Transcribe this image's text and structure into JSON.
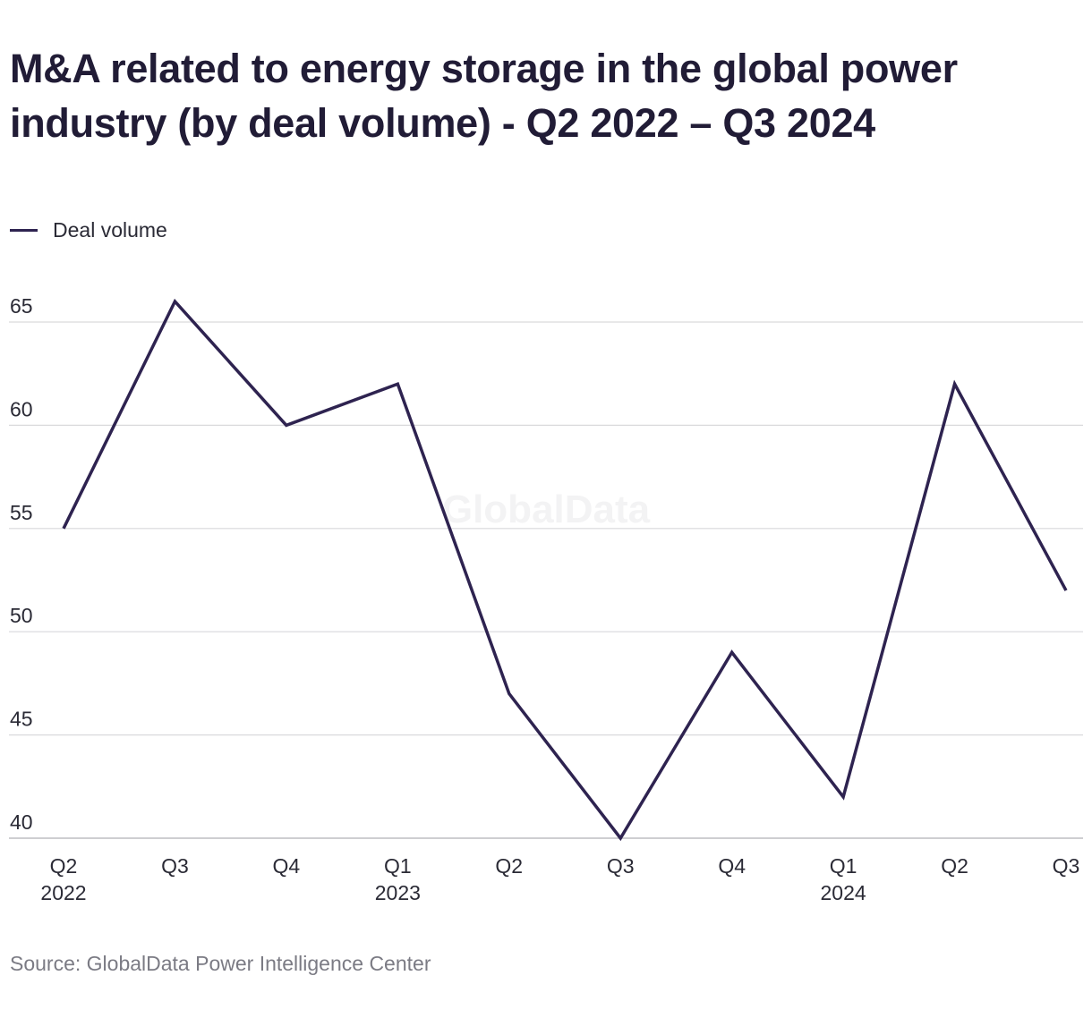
{
  "title": "M&A related to energy storage in the global power industry (by deal volume) - Q2 2022 – Q3 2024",
  "source": "Source: GlobalData Power Intelligence Center",
  "watermark": "GlobalData",
  "colors": {
    "line": "#2e2350",
    "grid": "#d9d9dc",
    "text": "#231d3a",
    "muted": "#7b7b84"
  },
  "chart_data": {
    "type": "line",
    "title": "M&A related to energy storage in the global power industry (by deal volume) - Q2 2022 – Q3 2024",
    "xlabel": "",
    "ylabel": "",
    "categories": [
      "Q2 2022",
      "Q3 2022",
      "Q4 2022",
      "Q1 2023",
      "Q2 2023",
      "Q3 2023",
      "Q4 2023",
      "Q1 2024",
      "Q2 2024",
      "Q3 2024"
    ],
    "tick_labels": [
      {
        "line1": "Q2",
        "line2": "2022"
      },
      {
        "line1": "Q3",
        "line2": ""
      },
      {
        "line1": "Q4",
        "line2": ""
      },
      {
        "line1": "Q1",
        "line2": "2023"
      },
      {
        "line1": "Q2",
        "line2": ""
      },
      {
        "line1": "Q3",
        "line2": ""
      },
      {
        "line1": "Q4",
        "line2": ""
      },
      {
        "line1": "Q1",
        "line2": "2024"
      },
      {
        "line1": "Q2",
        "line2": ""
      },
      {
        "line1": "Q3",
        "line2": ""
      }
    ],
    "series": [
      {
        "name": "Deal volume",
        "values": [
          55,
          66,
          60,
          62,
          47,
          40,
          49,
          42,
          62,
          52
        ]
      }
    ],
    "y_ticks": [
      40,
      45,
      50,
      55,
      60,
      65
    ],
    "ylim": [
      40,
      65
    ],
    "grid": true,
    "legend_position": "top-left"
  }
}
